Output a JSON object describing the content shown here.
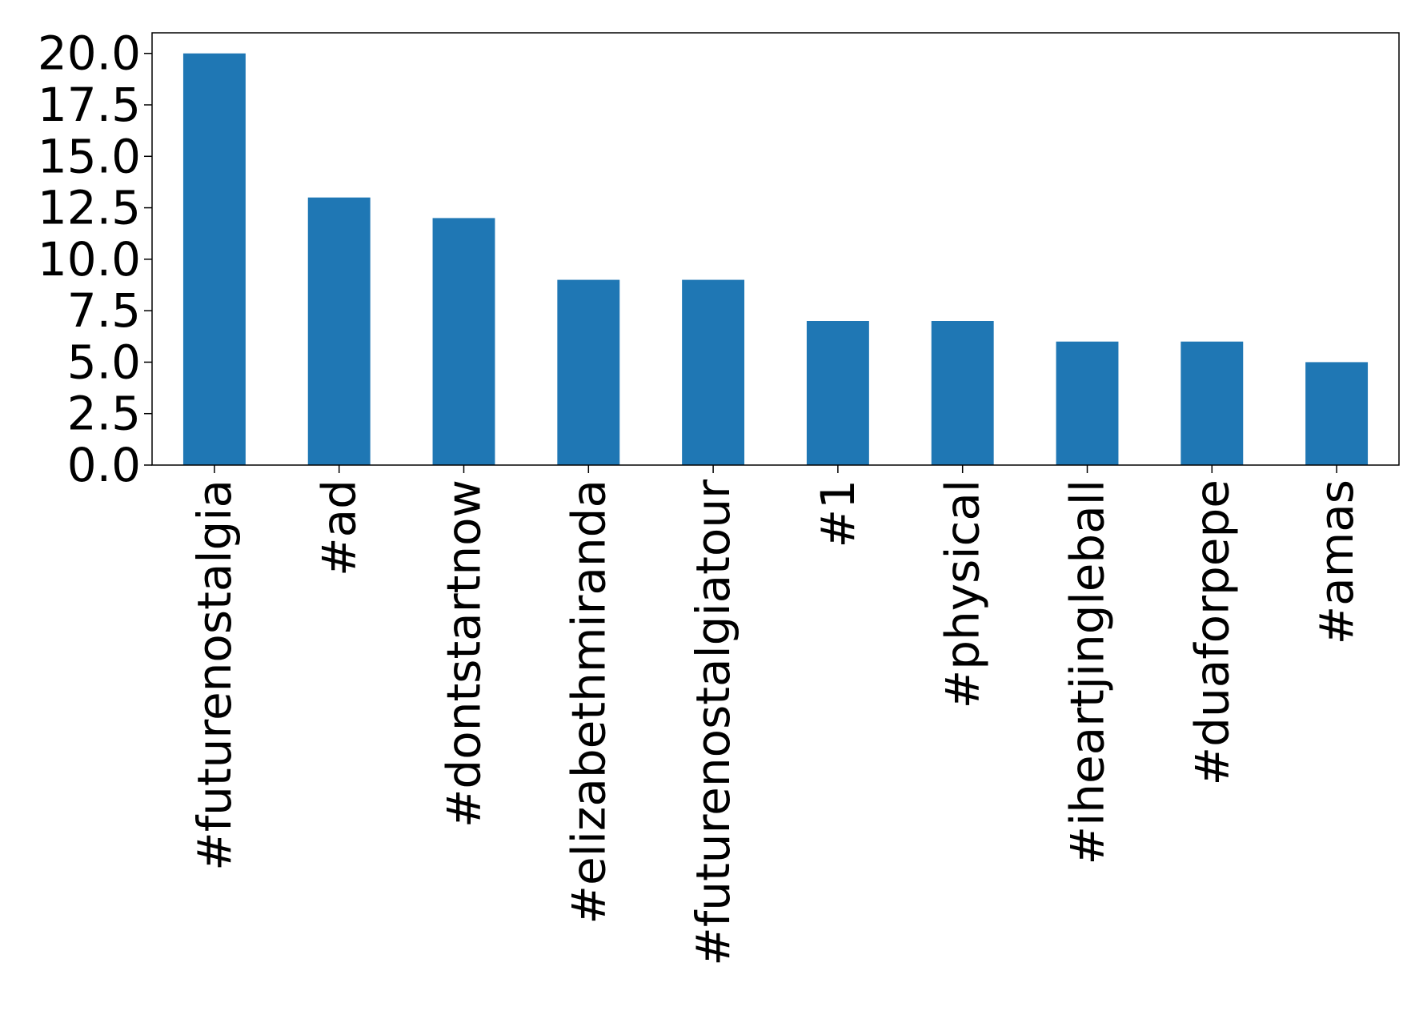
{
  "chart_data": {
    "type": "bar",
    "title": "",
    "xlabel": "",
    "ylabel": "",
    "categories": [
      "#futurenostalgia",
      "#ad",
      "#dontstartnow",
      "#elizabethmiranda",
      "#futurenostalgiatour",
      "#1",
      "#physical",
      "#iheartjingleball",
      "#duaforpepe",
      "#amas"
    ],
    "values": [
      20,
      13,
      12,
      9,
      9,
      7,
      7,
      6,
      6,
      5
    ],
    "ylim": [
      0,
      21
    ],
    "yticks": [
      0.0,
      2.5,
      5.0,
      7.5,
      10.0,
      12.5,
      15.0,
      17.5,
      20.0
    ],
    "ytick_labels": [
      "0.0",
      "2.5",
      "5.0",
      "7.5",
      "10.0",
      "12.5",
      "15.0",
      "17.5",
      "20.0"
    ],
    "bar_color": "#1f77b4",
    "grid": false,
    "legend": false
  }
}
